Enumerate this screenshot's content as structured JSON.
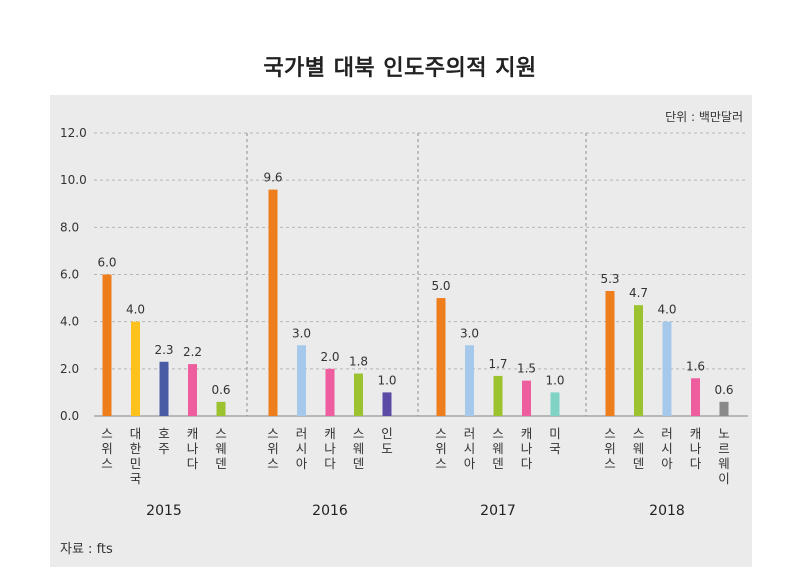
{
  "chart_data": {
    "type": "bar",
    "title": "국가별 대북 인도주의적 지원",
    "unit_label": "단위 : 백만달러",
    "source": "자료 : fts",
    "xlabel": "",
    "ylabel": "",
    "ylim": [
      0,
      12
    ],
    "yticks": [
      "0.0",
      "2.0",
      "4.0",
      "6.0",
      "8.0",
      "10.0",
      "12.0"
    ],
    "grid": true,
    "legend": "none",
    "groups": [
      {
        "year": "2015",
        "bars": [
          {
            "country": "스위스",
            "value": 6.0,
            "label": "6.0",
            "color": "#EE7D1C"
          },
          {
            "country": "대한민국",
            "value": 4.0,
            "label": "4.0",
            "color": "#FFC21D"
          },
          {
            "country": "호주",
            "value": 2.3,
            "label": "2.3",
            "color": "#4A5BA6"
          },
          {
            "country": "캐나다",
            "value": 2.2,
            "label": "2.2",
            "color": "#EE5E9E"
          },
          {
            "country": "스웨덴",
            "value": 0.6,
            "label": "0.6",
            "color": "#9CC32F"
          }
        ]
      },
      {
        "year": "2016",
        "bars": [
          {
            "country": "스위스",
            "value": 9.6,
            "label": "9.6",
            "color": "#EE7D1C"
          },
          {
            "country": "러시아",
            "value": 3.0,
            "label": "3.0",
            "color": "#A6C8EB"
          },
          {
            "country": "캐나다",
            "value": 2.0,
            "label": "2.0",
            "color": "#EE5E9E"
          },
          {
            "country": "스웨덴",
            "value": 1.8,
            "label": "1.8",
            "color": "#9CC32F"
          },
          {
            "country": "인도",
            "value": 1.0,
            "label": "1.0",
            "color": "#5B4AA6"
          }
        ]
      },
      {
        "year": "2017",
        "bars": [
          {
            "country": "스위스",
            "value": 5.0,
            "label": "5.0",
            "color": "#EE7D1C"
          },
          {
            "country": "러시아",
            "value": 3.0,
            "label": "3.0",
            "color": "#A6C8EB"
          },
          {
            "country": "스웨덴",
            "value": 1.7,
            "label": "1.7",
            "color": "#9CC32F"
          },
          {
            "country": "캐나다",
            "value": 1.5,
            "label": "1.5",
            "color": "#EE5E9E"
          },
          {
            "country": "미국",
            "value": 1.0,
            "label": "1.0",
            "color": "#7FD3C4"
          }
        ]
      },
      {
        "year": "2018",
        "bars": [
          {
            "country": "스위스",
            "value": 5.3,
            "label": "5.3",
            "color": "#EE7D1C"
          },
          {
            "country": "스웨덴",
            "value": 4.7,
            "label": "4.7",
            "color": "#9CC32F"
          },
          {
            "country": "러시아",
            "value": 4.0,
            "label": "4.0",
            "color": "#A6C8EB"
          },
          {
            "country": "캐나다",
            "value": 1.6,
            "label": "1.6",
            "color": "#EE5E9E"
          },
          {
            "country": "노르웨이",
            "value": 0.6,
            "label": "0.6",
            "color": "#8A8A8A"
          }
        ]
      }
    ]
  }
}
